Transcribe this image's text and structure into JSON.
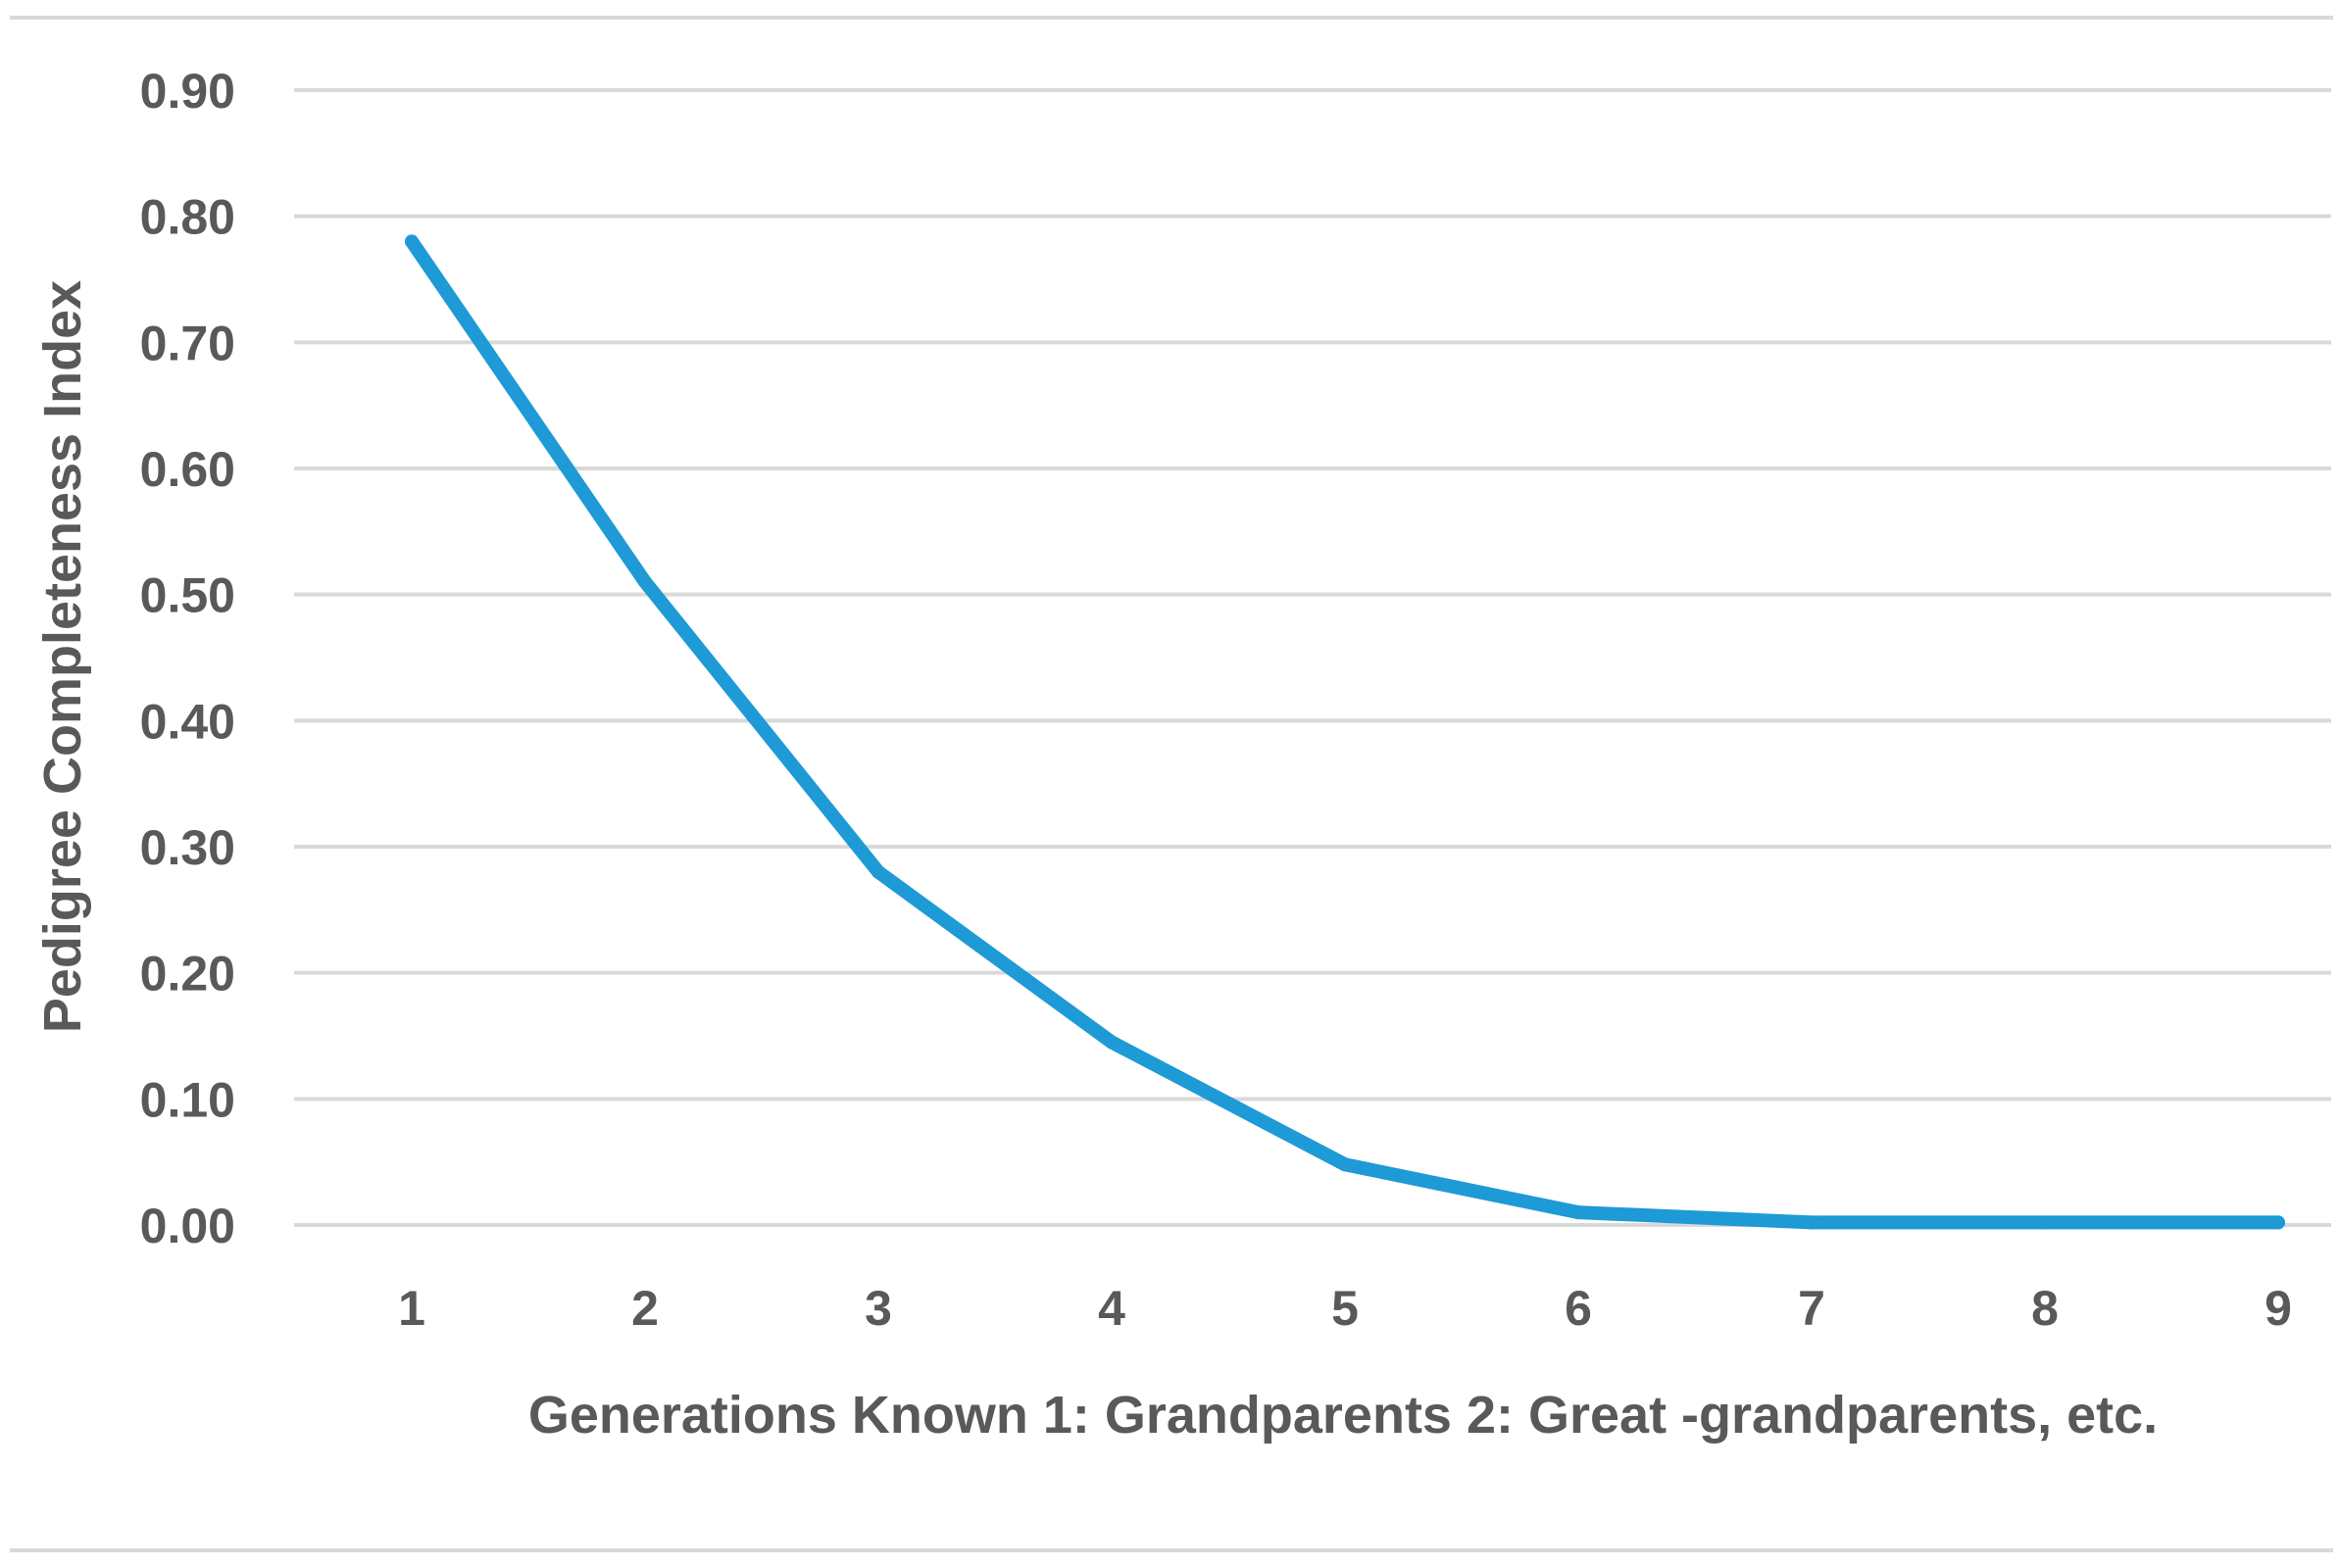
{
  "chart_data": {
    "type": "line",
    "title": "",
    "xlabel": "Generations Known 1: Grandparents 2: Great -grandparents, etc.",
    "ylabel": "Pedigree Completeness Index",
    "x": [
      1,
      2,
      3,
      4,
      5,
      6,
      7,
      8,
      9
    ],
    "categories": [
      "1",
      "2",
      "3",
      "4",
      "5",
      "6",
      "7",
      "8",
      "9"
    ],
    "series": [
      {
        "values": [
          0.78,
          0.51,
          0.28,
          0.145,
          0.048,
          0.01,
          0.002,
          0.002,
          0.002
        ],
        "color": "#1E9AD6"
      }
    ],
    "ylim": [
      0,
      0.9
    ],
    "yticks": [
      "0.00",
      "0.10",
      "0.20",
      "0.30",
      "0.40",
      "0.50",
      "0.60",
      "0.70",
      "0.80",
      "0.90"
    ],
    "grid": true,
    "legend": "none",
    "colors": {
      "line": "#1E9AD6",
      "grid": "#D9D9D9",
      "text": "#595959"
    }
  }
}
